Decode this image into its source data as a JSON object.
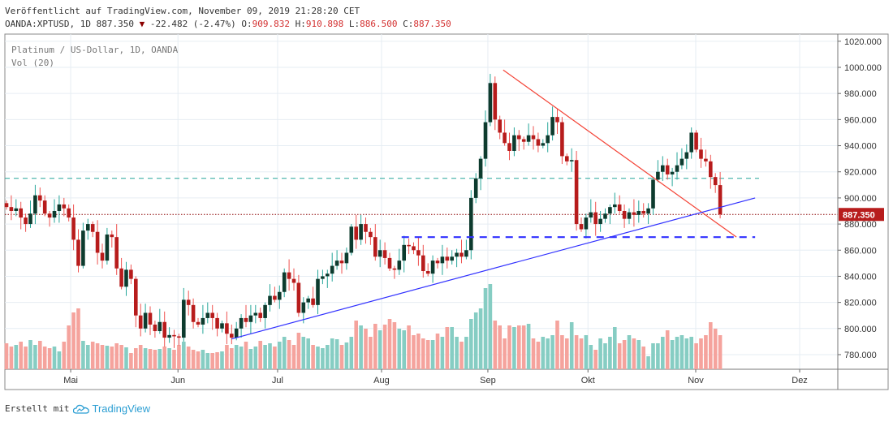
{
  "header": {
    "published": "Veröffentlicht auf TradingView.com, November 09, 2019 21:28:20 CET",
    "symbol": "OANDA:XPTUSD, 1D 887.350",
    "change": "-22.482 (-2.47%)",
    "o_label": "O:",
    "o": "909.832",
    "h_label": "H:",
    "h": "910.898",
    "l_label": "L:",
    "l": "886.500",
    "c_label": "C:",
    "c": "887.350"
  },
  "legend": {
    "title": "Platinum / US-Dollar, 1D, OANDA",
    "volume": "Vol (20)"
  },
  "footer": {
    "made_with": "Erstellt mit",
    "brand": "TradingView"
  },
  "colors": {
    "up_body": "#0d3b2e",
    "up_wick": "#26a69a",
    "down_body": "#b71c1c",
    "down_wick": "#ef5350",
    "vol_up": "#86cdc3",
    "vol_down": "#f5a39d",
    "trend_red": "#f44336",
    "trend_blue": "#3030ff",
    "support_green": "#26a69a",
    "price_label": "#b71c1c"
  },
  "chart_data": {
    "type": "candlestick",
    "title": "Platinum / US-Dollar, 1D, OANDA",
    "ylim": [
      766,
      1022
    ],
    "y_ticks": [
      "780.000",
      "800.000",
      "820.000",
      "840.000",
      "860.000",
      "880.000",
      "900.000",
      "920.000",
      "940.000",
      "960.000",
      "980.000",
      "1000.000",
      "1020.000"
    ],
    "y_tick_values": [
      780,
      800,
      820,
      840,
      860,
      880,
      900,
      920,
      940,
      960,
      980,
      1000,
      1020
    ],
    "x_ticks": [
      {
        "label": "Mai",
        "index": 13.4
      },
      {
        "label": "Jun",
        "index": 35.8
      },
      {
        "label": "Jul",
        "index": 56.6
      },
      {
        "label": "Aug",
        "index": 78.3
      },
      {
        "label": "Sep",
        "index": 100.5
      },
      {
        "label": "Okt",
        "index": 121.4
      },
      {
        "label": "Nov",
        "index": 143.9
      },
      {
        "label": "Dez",
        "index": 165.6
      }
    ],
    "x_range": [
      -0.5,
      173.5
    ],
    "first_open": 896,
    "close": [
      893,
      890,
      892,
      885,
      880,
      888,
      902,
      898,
      888,
      885,
      890,
      895,
      892,
      885,
      868,
      848,
      875,
      880,
      874,
      858,
      852,
      872,
      870,
      846,
      832,
      845,
      838,
      810,
      800,
      812,
      803,
      798,
      805,
      793,
      795,
      794,
      793,
      822,
      818,
      805,
      803,
      808,
      812,
      808,
      800,
      804,
      796,
      793,
      800,
      808,
      805,
      810,
      812,
      808,
      818,
      825,
      822,
      828,
      843,
      838,
      835,
      812,
      820,
      823,
      818,
      838,
      840,
      842,
      848,
      852,
      850,
      858,
      878,
      868,
      880,
      874,
      870,
      855,
      860,
      854,
      846,
      845,
      852,
      864,
      863,
      860,
      856,
      844,
      842,
      852,
      850,
      855,
      852,
      855,
      858,
      855,
      860,
      900,
      915,
      930,
      958,
      988,
      960,
      950,
      942,
      936,
      948,
      945,
      943,
      948,
      945,
      940,
      942,
      948,
      962,
      958,
      932,
      928,
      929,
      880,
      876,
      885,
      889,
      880,
      884,
      888,
      893,
      895,
      890,
      884,
      889,
      887,
      890,
      888,
      892,
      914,
      920,
      925,
      918,
      920,
      925,
      930,
      935,
      950,
      937,
      930,
      928,
      916,
      909.832,
      887.35
    ],
    "volume_relative": [
      32,
      28,
      30,
      34,
      28,
      36,
      30,
      35,
      28,
      26,
      28,
      22,
      34,
      54,
      70,
      75,
      35,
      30,
      34,
      32,
      30,
      29,
      28,
      32,
      30,
      27,
      20,
      26,
      30,
      26,
      25,
      24,
      25,
      28,
      26,
      24,
      30,
      34,
      28,
      24,
      22,
      24,
      20,
      20,
      21,
      22,
      30,
      26,
      30,
      28,
      34,
      25,
      28,
      35,
      30,
      32,
      28,
      34,
      40,
      36,
      30,
      45,
      40,
      38,
      30,
      28,
      26,
      30,
      38,
      37,
      30,
      33,
      40,
      60,
      54,
      50,
      40,
      56,
      48,
      55,
      62,
      58,
      50,
      48,
      54,
      42,
      44,
      38,
      36,
      36,
      44,
      40,
      52,
      52,
      40,
      34,
      40,
      62,
      70,
      75,
      100,
      105,
      60,
      54,
      38,
      54,
      52,
      54,
      54,
      56,
      38,
      34,
      40,
      38,
      42,
      60,
      42,
      38,
      58,
      42,
      38,
      42,
      30,
      24,
      38,
      32,
      40,
      52,
      32,
      36,
      42,
      38,
      36,
      28,
      16,
      32,
      32,
      40,
      48,
      36,
      40,
      42,
      38,
      40,
      32,
      38,
      42,
      58,
      50,
      42
    ],
    "last_price": "887.350",
    "drawings": [
      {
        "name": "resistance-trendline",
        "color": "red",
        "from": {
          "index": 103.7,
          "price": 998
        },
        "to": {
          "index": 152.4,
          "price": 870
        }
      },
      {
        "name": "support-trendline",
        "color": "blue",
        "from": {
          "index": 47.0,
          "price": 792
        },
        "to": {
          "index": 156.3,
          "price": 900
        }
      },
      {
        "name": "horizontal-support-dashed",
        "color": "blue",
        "price": 870,
        "from_index": 82.5,
        "to_index": 156.3
      },
      {
        "name": "horizontal-level-dashed",
        "color": "green",
        "price": 915
      }
    ]
  }
}
